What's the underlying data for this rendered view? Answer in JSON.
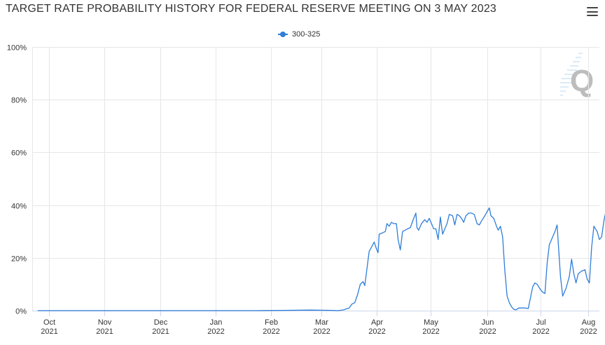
{
  "title": "TARGET RATE PROBABILITY HISTORY FOR FEDERAL RESERVE MEETING ON 3 MAY 2023",
  "menu_icon": "hamburger-menu-icon",
  "watermark_icon": "q-logo-icon",
  "colors": {
    "series": "#2f7ed8",
    "grid": "#e6e6e6",
    "text": "#333333"
  },
  "chart_data": {
    "type": "line",
    "title": "TARGET RATE PROBABILITY HISTORY FOR FEDERAL RESERVE MEETING ON 3 MAY 2023",
    "xlabel": "",
    "ylabel": "",
    "ylim": [
      0,
      100
    ],
    "xlim": [
      0,
      10.2
    ],
    "yticks": [
      {
        "value": 0,
        "label": "0%"
      },
      {
        "value": 20,
        "label": "20%"
      },
      {
        "value": 40,
        "label": "40%"
      },
      {
        "value": 60,
        "label": "60%"
      },
      {
        "value": 80,
        "label": "80%"
      },
      {
        "value": 100,
        "label": "100%"
      }
    ],
    "xticks": [
      {
        "value": 0.3,
        "month": "Oct",
        "year": "2021"
      },
      {
        "value": 1.3,
        "month": "Nov",
        "year": "2021"
      },
      {
        "value": 2.3,
        "month": "Dec",
        "year": "2021"
      },
      {
        "value": 3.3,
        "month": "Jan",
        "year": "2022"
      },
      {
        "value": 4.3,
        "month": "Feb",
        "year": "2022"
      },
      {
        "value": 5.2,
        "month": "Mar",
        "year": "2022"
      },
      {
        "value": 6.2,
        "month": "Apr",
        "year": "2022"
      },
      {
        "value": 7.17,
        "month": "May",
        "year": "2022"
      },
      {
        "value": 8.18,
        "month": "Jun",
        "year": "2022"
      },
      {
        "value": 9.14,
        "month": "Jul",
        "year": "2022"
      },
      {
        "value": 10.0,
        "month": "Aug",
        "year": "2022"
      }
    ],
    "legend": {
      "position": "top-center",
      "entries": [
        "300-325"
      ]
    },
    "series": [
      {
        "name": "300-325",
        "points": [
          [
            0.1,
            0
          ],
          [
            1,
            0
          ],
          [
            2,
            0
          ],
          [
            3,
            0
          ],
          [
            4,
            0
          ],
          [
            4.5,
            0.1
          ],
          [
            5,
            0.2
          ],
          [
            5.4,
            0.1
          ],
          [
            5.5,
            0
          ],
          [
            5.6,
            0.3
          ],
          [
            5.7,
            1
          ],
          [
            5.75,
            2.5
          ],
          [
            5.8,
            3
          ],
          [
            5.85,
            6
          ],
          [
            5.9,
            10
          ],
          [
            5.95,
            11
          ],
          [
            5.98,
            9.5
          ],
          [
            6.02,
            16
          ],
          [
            6.06,
            22.5
          ],
          [
            6.1,
            24
          ],
          [
            6.15,
            26
          ],
          [
            6.18,
            24
          ],
          [
            6.22,
            22
          ],
          [
            6.24,
            29
          ],
          [
            6.3,
            29.5
          ],
          [
            6.35,
            30
          ],
          [
            6.38,
            33
          ],
          [
            6.42,
            32
          ],
          [
            6.46,
            33.5
          ],
          [
            6.5,
            33
          ],
          [
            6.55,
            33
          ],
          [
            6.58,
            27
          ],
          [
            6.62,
            23
          ],
          [
            6.66,
            30
          ],
          [
            6.75,
            31
          ],
          [
            6.8,
            31.5
          ],
          [
            6.86,
            35
          ],
          [
            6.9,
            37
          ],
          [
            6.92,
            31.5
          ],
          [
            6.95,
            30.5
          ],
          [
            7.0,
            33
          ],
          [
            7.06,
            34.5
          ],
          [
            7.1,
            33.5
          ],
          [
            7.14,
            35
          ],
          [
            7.18,
            33
          ],
          [
            7.22,
            31
          ],
          [
            7.26,
            31
          ],
          [
            7.3,
            27
          ],
          [
            7.34,
            35.5
          ],
          [
            7.38,
            29
          ],
          [
            7.42,
            31
          ],
          [
            7.46,
            33
          ],
          [
            7.5,
            36.5
          ],
          [
            7.56,
            36
          ],
          [
            7.6,
            32.5
          ],
          [
            7.64,
            36.5
          ],
          [
            7.68,
            36
          ],
          [
            7.72,
            35
          ],
          [
            7.76,
            33.5
          ],
          [
            7.8,
            36
          ],
          [
            7.85,
            37
          ],
          [
            7.9,
            37
          ],
          [
            7.95,
            36.5
          ],
          [
            8.0,
            33
          ],
          [
            8.04,
            32.5
          ],
          [
            8.08,
            34
          ],
          [
            8.14,
            36
          ],
          [
            8.18,
            37.5
          ],
          [
            8.22,
            39
          ],
          [
            8.25,
            36
          ],
          [
            8.3,
            35
          ],
          [
            8.35,
            32
          ],
          [
            8.38,
            30.5
          ],
          [
            8.42,
            32
          ],
          [
            8.46,
            28
          ],
          [
            8.5,
            15
          ],
          [
            8.54,
            5.5
          ],
          [
            8.58,
            3
          ],
          [
            8.62,
            1.5
          ],
          [
            8.66,
            0.5
          ],
          [
            8.7,
            0.3
          ],
          [
            8.75,
            1
          ],
          [
            8.85,
            1
          ],
          [
            8.92,
            0.8
          ],
          [
            9.0,
            9
          ],
          [
            9.04,
            10.5
          ],
          [
            9.08,
            10
          ],
          [
            9.14,
            8
          ],
          [
            9.18,
            7
          ],
          [
            9.22,
            6.5
          ],
          [
            9.26,
            18
          ],
          [
            9.3,
            25
          ],
          [
            9.36,
            28
          ],
          [
            9.4,
            30
          ],
          [
            9.44,
            32.5
          ],
          [
            9.5,
            13
          ],
          [
            9.54,
            5.5
          ],
          [
            9.6,
            8.5
          ],
          [
            9.66,
            13
          ],
          [
            9.7,
            19.5
          ],
          [
            9.74,
            14
          ],
          [
            9.78,
            10.5
          ],
          [
            9.82,
            14
          ],
          [
            9.88,
            15
          ],
          [
            9.94,
            15.5
          ],
          [
            9.98,
            12
          ],
          [
            10.02,
            10.5
          ],
          [
            10.06,
            24
          ],
          [
            10.1,
            32
          ],
          [
            10.16,
            30
          ],
          [
            10.2,
            27
          ],
          [
            10.24,
            28
          ],
          [
            10.28,
            34
          ],
          [
            10.32,
            38
          ],
          [
            10.36,
            36
          ]
        ]
      }
    ]
  }
}
